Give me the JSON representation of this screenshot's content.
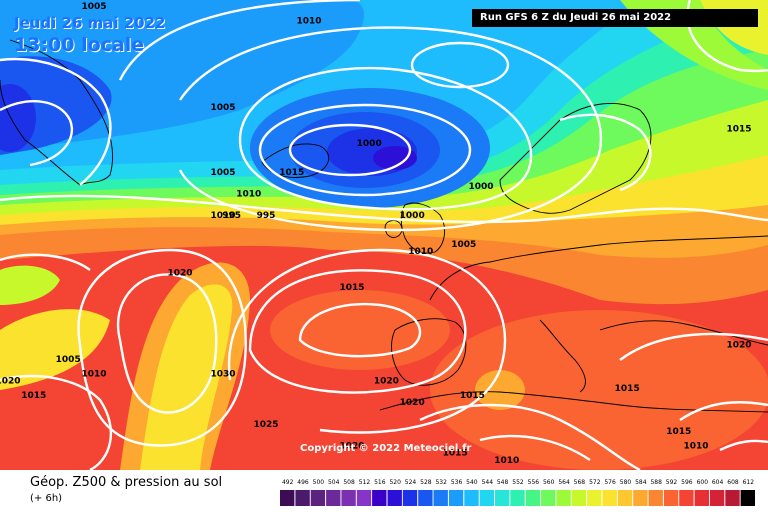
{
  "header": {
    "date": "Jeudi 26 mai 2022",
    "time": "13:00 locale",
    "run": "Run GFS 6 Z du Jeudi 26 mai 2022"
  },
  "copyright": "Copyright © 2022 Meteociel.fr",
  "footer": {
    "title": "Géop. Z500 & pression au sol",
    "subtitle": "(+ 6h)"
  },
  "legend": {
    "values": [
      "492",
      "496",
      "500",
      "504",
      "508",
      "512",
      "516",
      "520",
      "524",
      "528",
      "532",
      "536",
      "540",
      "544",
      "548",
      "552",
      "556",
      "560",
      "564",
      "568",
      "572",
      "576",
      "580",
      "584",
      "588",
      "592",
      "596",
      "600",
      "604",
      "608",
      "612"
    ],
    "colors": [
      "#3c0d54",
      "#4b1a6b",
      "#5c2280",
      "#6a2a99",
      "#7a30b0",
      "#8636c6",
      "#3b00c8",
      "#2d10d8",
      "#1d32e6",
      "#1a56f0",
      "#1b7af6",
      "#1c9cfb",
      "#1ebcfc",
      "#22d6f2",
      "#27e6d8",
      "#2ef0b0",
      "#46f585",
      "#6ef95c",
      "#9cfa38",
      "#c6f82c",
      "#e9f22c",
      "#fbe22e",
      "#fdc72f",
      "#fda830",
      "#fb8631",
      "#f96432",
      "#f44433",
      "#e63034",
      "#d42236",
      "#b81a34",
      "#000000"
    ]
  },
  "isobars": [
    {
      "label": "1020",
      "x": -25,
      "y": 52
    },
    {
      "label": "1005",
      "x": -20,
      "y": 66
    },
    {
      "label": "1005",
      "x": -35,
      "y": 89
    },
    {
      "label": "1010",
      "x": -10,
      "y": 87
    },
    {
      "label": "1005",
      "x": -20,
      "y": 75
    },
    {
      "label": "1015",
      "x": -12,
      "y": 66
    },
    {
      "label": "1010",
      "x": -17,
      "y": 63
    },
    {
      "label": "1010",
      "x": -20,
      "y": 60
    },
    {
      "label": "1000",
      "x": -3,
      "y": 70
    },
    {
      "label": "995",
      "x": -19,
      "y": 60
    },
    {
      "label": "995",
      "x": -15,
      "y": 60
    },
    {
      "label": "1000",
      "x": 2,
      "y": 60
    },
    {
      "label": "1000",
      "x": 10,
      "y": 64
    },
    {
      "label": "1005",
      "x": 8,
      "y": 56
    },
    {
      "label": "1010",
      "x": 3,
      "y": 55
    },
    {
      "label": "1015",
      "x": -5,
      "y": 50
    },
    {
      "label": "1015",
      "x": 40,
      "y": 72
    },
    {
      "label": "1025",
      "x": -50,
      "y": 44
    },
    {
      "label": "1005",
      "x": -38,
      "y": 40
    },
    {
      "label": "1010",
      "x": -35,
      "y": 38
    },
    {
      "label": "1020",
      "x": -45,
      "y": 37
    },
    {
      "label": "1015",
      "x": -42,
      "y": 35
    },
    {
      "label": "1025",
      "x": -48,
      "y": 30
    },
    {
      "label": "1030",
      "x": -20,
      "y": 38
    },
    {
      "label": "1025",
      "x": -15,
      "y": 31
    },
    {
      "label": "1020",
      "x": -5,
      "y": 28
    },
    {
      "label": "1020",
      "x": -1,
      "y": 37
    },
    {
      "label": "1020",
      "x": 2,
      "y": 34
    },
    {
      "label": "1015",
      "x": 9,
      "y": 35
    },
    {
      "label": "1015",
      "x": 7,
      "y": 27
    },
    {
      "label": "1010",
      "x": 13,
      "y": 26
    },
    {
      "label": "1015",
      "x": 27,
      "y": 36
    },
    {
      "label": "1020",
      "x": 40,
      "y": 42
    },
    {
      "label": "1015",
      "x": 33,
      "y": 30
    },
    {
      "label": "1010",
      "x": 35,
      "y": 28
    }
  ]
}
